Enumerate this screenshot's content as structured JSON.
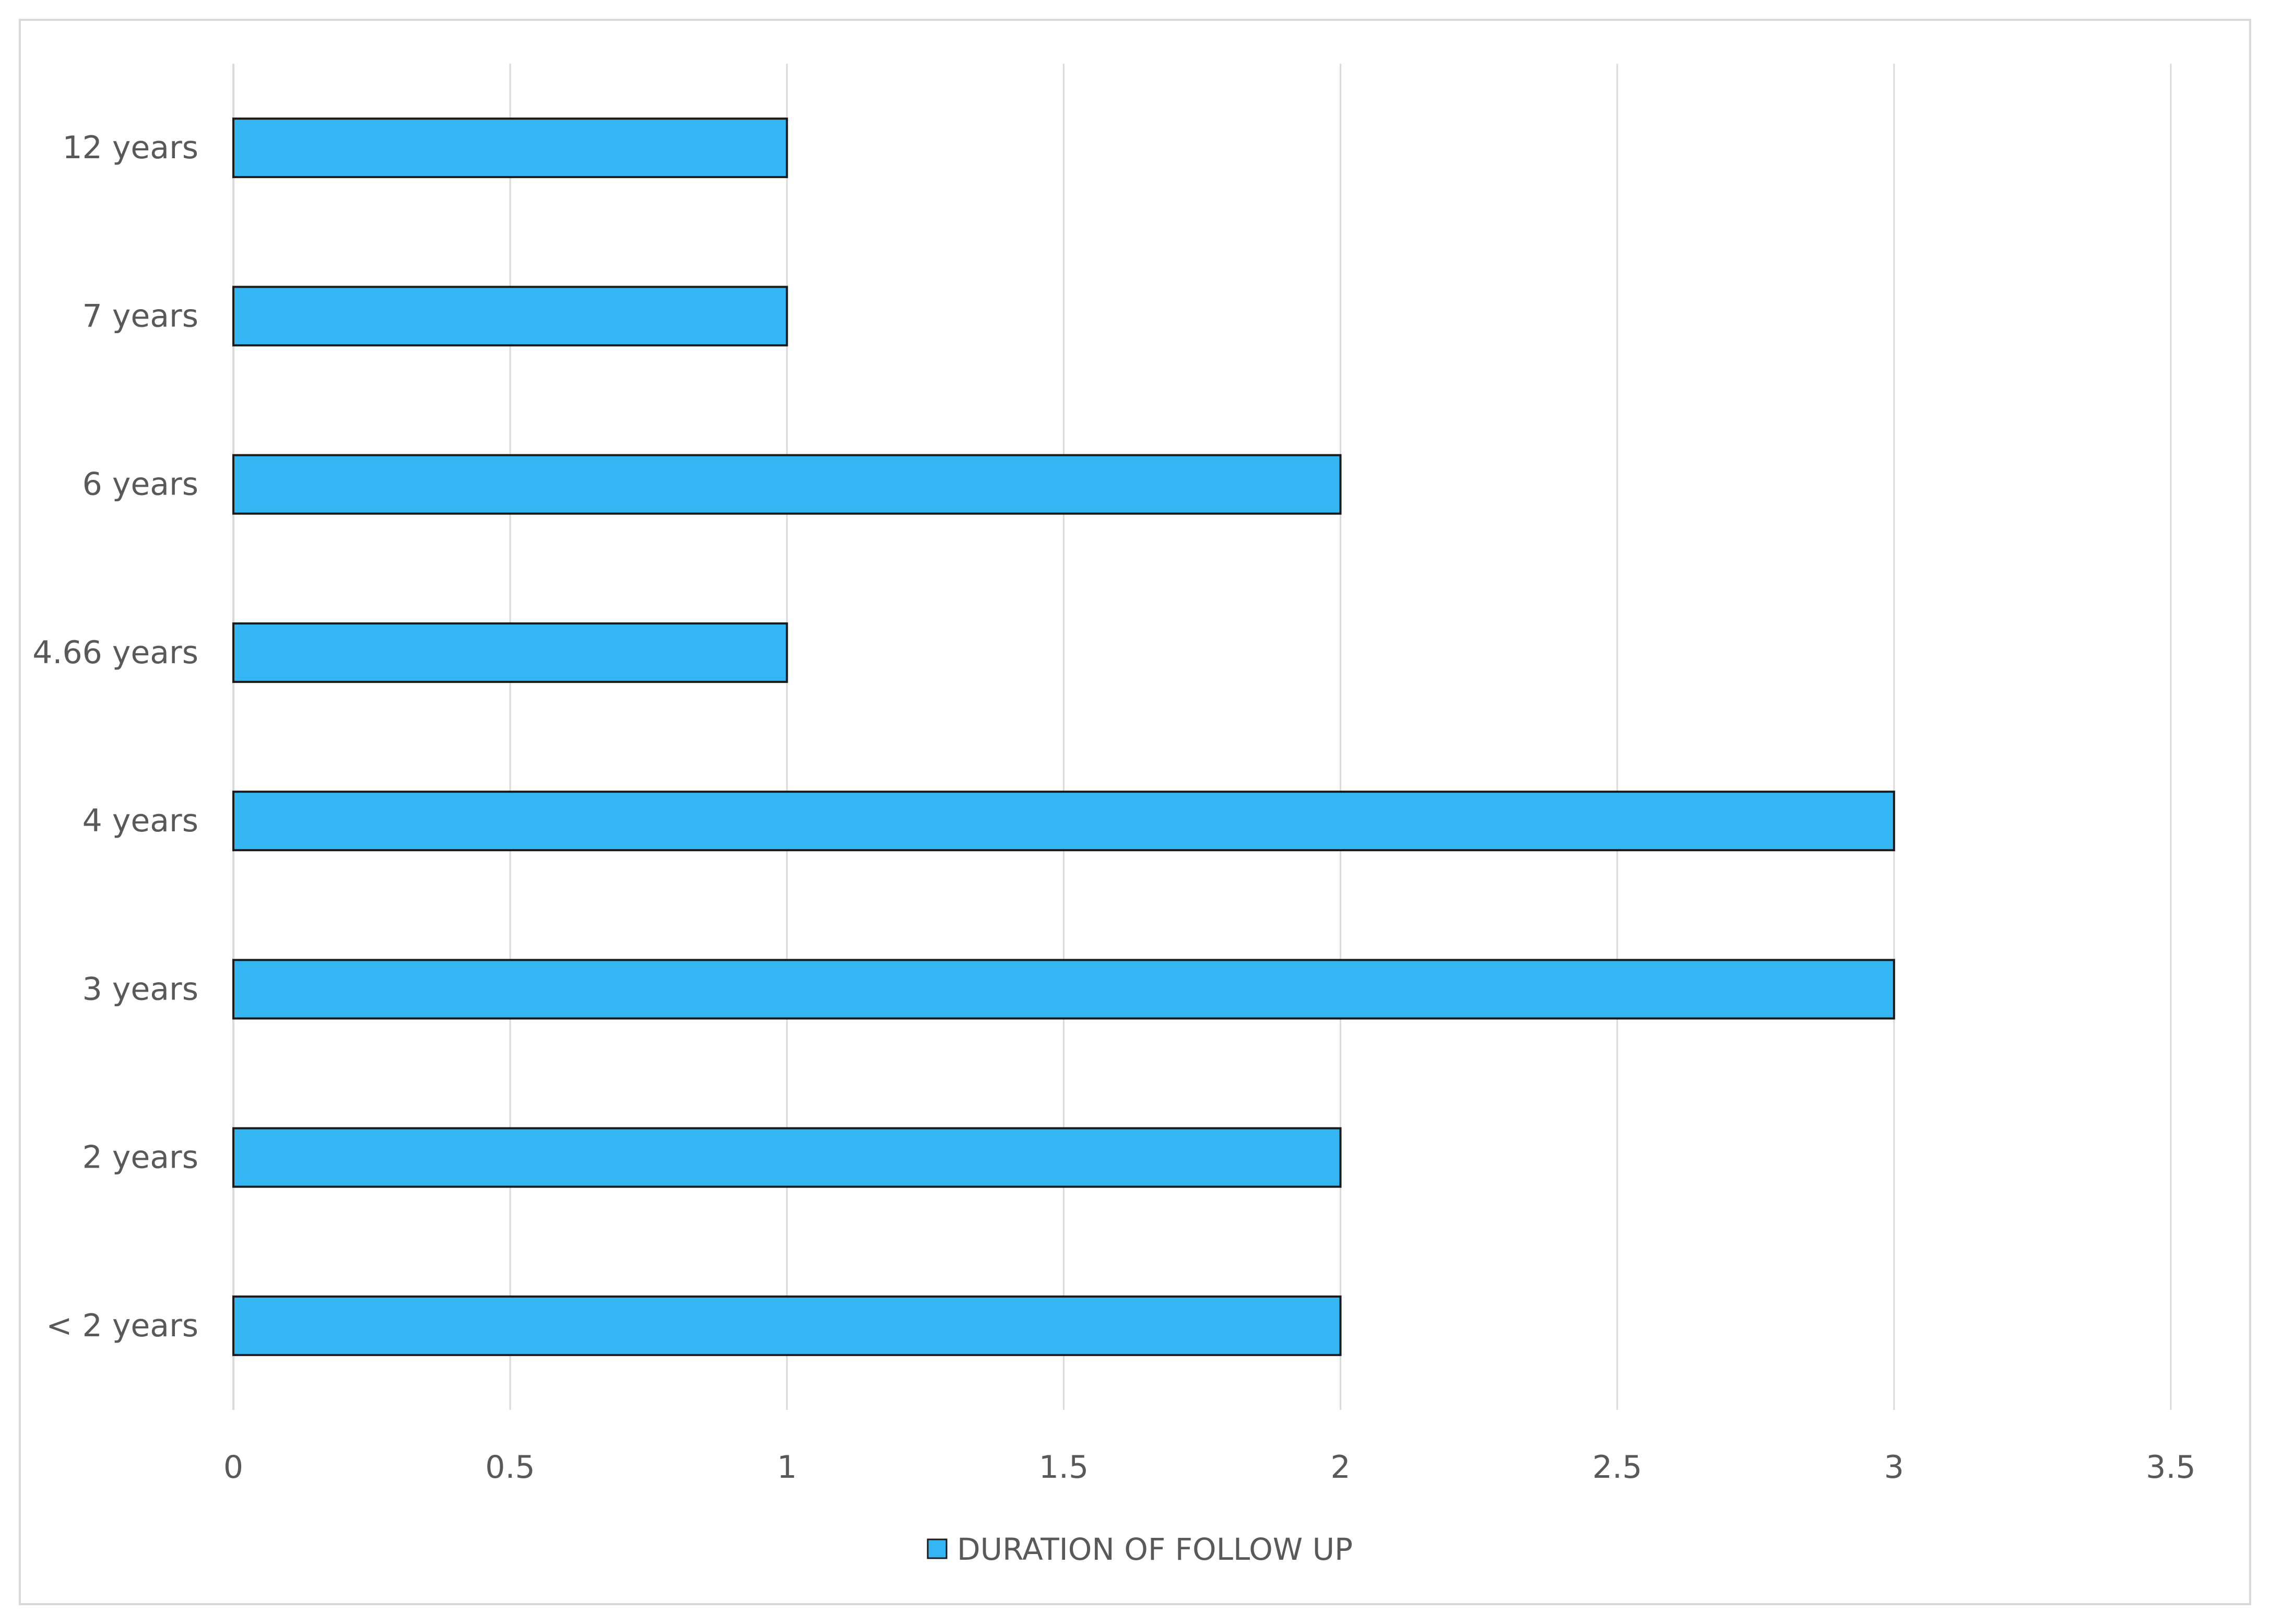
{
  "chart_data": {
    "type": "bar",
    "orientation": "horizontal",
    "categories": [
      "12 years",
      "7 years",
      "6 years",
      "4.66 years",
      "4 years",
      "3 years",
      "2 years",
      "< 2 years"
    ],
    "series": [
      {
        "name": "DURATION OF FOLLOW UP",
        "values": [
          1,
          1,
          2,
          1,
          3,
          3,
          2,
          2
        ],
        "color": "#33b6f1"
      }
    ],
    "xlim": [
      0,
      3.5
    ],
    "xticks": [
      "0",
      "0.5",
      "1",
      "1.5",
      "2",
      "2.5",
      "3",
      "3.5"
    ],
    "title": "",
    "xlabel": "",
    "ylabel": "",
    "grid": "vertical",
    "legend_position": "bottom"
  },
  "colors": {
    "bar_fill": "#33b6f1",
    "bar_stroke": "#1a1a1a",
    "gridline": "#d9d9d9",
    "text": "#595959",
    "frame_border": "#d9d9d9"
  }
}
